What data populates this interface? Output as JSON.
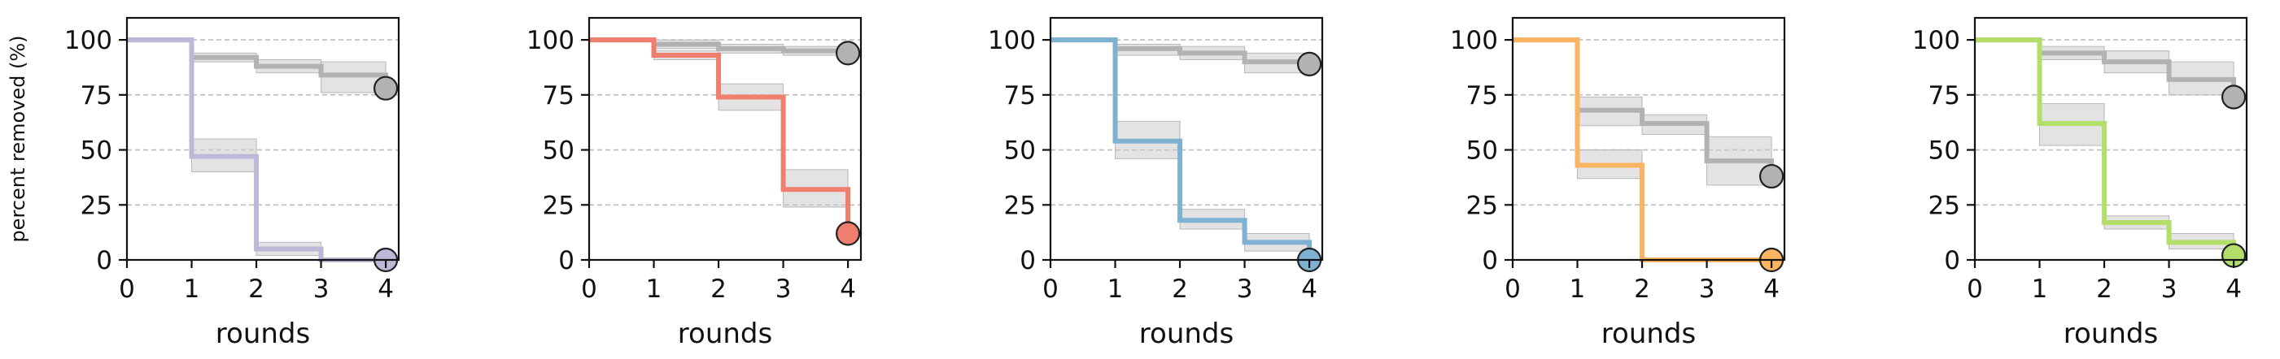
{
  "ylabel": "percent removed (%)",
  "colors": {
    "background": "#ffffff",
    "axis": "#111111",
    "reference_series": "#b2b2b2",
    "band": "#cccccc",
    "grid": "#bdbdbd",
    "marker_edge": "#222222"
  },
  "chart_data": [
    {
      "type": "line",
      "step": true,
      "xlabel": "rounds",
      "ylabel": "percent removed (%)",
      "xlim": [
        0,
        4.2
      ],
      "ylim": [
        0,
        110
      ],
      "x_ticks": [
        0,
        1,
        2,
        3,
        4
      ],
      "y_ticks": [
        0,
        25,
        50,
        75,
        100
      ],
      "grid": "horizontal dashed",
      "series": [
        {
          "color": "#b2b2b2",
          "values": [
            100,
            92,
            88,
            84,
            78
          ],
          "band_lower": [
            100,
            90,
            85,
            76,
            76
          ],
          "band_upper": [
            100,
            94,
            91,
            90,
            90
          ]
        },
        {
          "color": "#bcb9d8",
          "values": [
            100,
            47,
            5,
            0,
            0
          ],
          "band_lower": [
            100,
            40,
            2,
            0,
            0
          ],
          "band_upper": [
            100,
            55,
            8,
            0,
            0
          ]
        }
      ]
    },
    {
      "type": "line",
      "step": true,
      "xlabel": "rounds",
      "xlim": [
        0,
        4.2
      ],
      "ylim": [
        0,
        110
      ],
      "x_ticks": [
        0,
        1,
        2,
        3,
        4
      ],
      "y_ticks": [
        0,
        25,
        50,
        75,
        100
      ],
      "grid": "horizontal dashed",
      "series": [
        {
          "color": "#b2b2b2",
          "values": [
            100,
            98,
            96,
            95,
            94
          ],
          "band_lower": [
            100,
            96,
            94,
            93,
            93
          ],
          "band_upper": [
            100,
            100,
            98,
            97,
            97
          ]
        },
        {
          "color": "#f07e6e",
          "values": [
            100,
            93,
            74,
            32,
            12
          ],
          "band_lower": [
            100,
            91,
            68,
            24,
            24
          ],
          "band_upper": [
            100,
            95,
            80,
            41,
            41
          ]
        }
      ]
    },
    {
      "type": "line",
      "step": true,
      "xlabel": "rounds",
      "xlim": [
        0,
        4.2
      ],
      "ylim": [
        0,
        110
      ],
      "x_ticks": [
        0,
        1,
        2,
        3,
        4
      ],
      "y_ticks": [
        0,
        25,
        50,
        75,
        100
      ],
      "grid": "horizontal dashed",
      "series": [
        {
          "color": "#b2b2b2",
          "values": [
            100,
            96,
            94,
            90,
            89
          ],
          "band_lower": [
            100,
            93,
            91,
            85,
            85
          ],
          "band_upper": [
            100,
            98,
            97,
            94,
            94
          ]
        },
        {
          "color": "#7fb1d3",
          "values": [
            100,
            54,
            18,
            8,
            0
          ],
          "band_lower": [
            100,
            46,
            14,
            4,
            4
          ],
          "band_upper": [
            100,
            63,
            23,
            12,
            12
          ]
        }
      ]
    },
    {
      "type": "line",
      "step": true,
      "xlabel": "rounds",
      "xlim": [
        0,
        4.2
      ],
      "ylim": [
        0,
        110
      ],
      "x_ticks": [
        0,
        1,
        2,
        3,
        4
      ],
      "y_ticks": [
        0,
        25,
        50,
        75,
        100
      ],
      "grid": "horizontal dashed",
      "series": [
        {
          "color": "#b2b2b2",
          "values": [
            100,
            68,
            62,
            45,
            38
          ],
          "band_lower": [
            100,
            61,
            57,
            34,
            34
          ],
          "band_upper": [
            100,
            74,
            66,
            56,
            56
          ]
        },
        {
          "color": "#fbb462",
          "values": [
            100,
            43,
            0,
            0,
            0
          ],
          "band_lower": [
            100,
            37,
            0,
            0,
            0
          ],
          "band_upper": [
            100,
            50,
            0,
            0,
            0
          ]
        }
      ]
    },
    {
      "type": "line",
      "step": true,
      "xlabel": "rounds",
      "xlim": [
        0,
        4.2
      ],
      "ylim": [
        0,
        110
      ],
      "x_ticks": [
        0,
        1,
        2,
        3,
        4
      ],
      "y_ticks": [
        0,
        25,
        50,
        75,
        100
      ],
      "grid": "horizontal dashed",
      "series": [
        {
          "color": "#b2b2b2",
          "values": [
            100,
            94,
            90,
            82,
            74
          ],
          "band_lower": [
            100,
            91,
            85,
            75,
            75
          ],
          "band_upper": [
            100,
            97,
            95,
            90,
            90
          ]
        },
        {
          "color": "#b3de69",
          "values": [
            100,
            62,
            17,
            8,
            2
          ],
          "band_lower": [
            100,
            52,
            14,
            5,
            5
          ],
          "band_upper": [
            100,
            71,
            20,
            12,
            12
          ]
        }
      ]
    }
  ]
}
